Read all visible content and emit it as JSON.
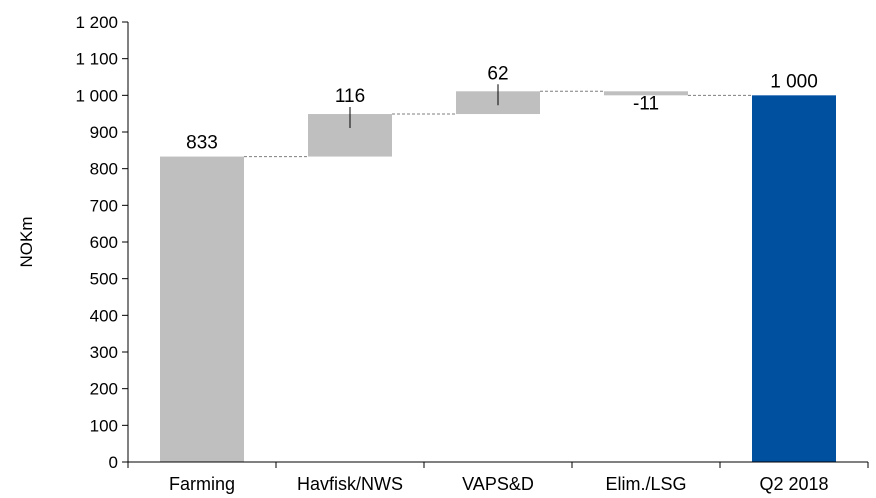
{
  "chart_data": {
    "type": "bar",
    "subtype": "waterfall",
    "title": "",
    "ylabel": "NOKm",
    "xlabel": "",
    "ylim": [
      0,
      1200
    ],
    "yticks": [
      0,
      100,
      200,
      300,
      400,
      500,
      600,
      700,
      800,
      900,
      1000,
      1100,
      1200
    ],
    "ytick_labels": [
      "0",
      "100",
      "200",
      "300",
      "400",
      "500",
      "600",
      "700",
      "800",
      "900",
      "1 000",
      "1 100",
      "1 200"
    ],
    "grid": false,
    "legend": "none",
    "categories": [
      "Farming",
      "Havfisk/NWS",
      "VAPS&D",
      "Elim./LSG",
      "Q2 2018"
    ],
    "values": [
      833,
      116,
      62,
      -11,
      1000
    ],
    "value_labels": [
      "833",
      "116",
      "62",
      "-11",
      "1 000"
    ],
    "kinds": [
      "total",
      "delta",
      "delta",
      "delta",
      "total"
    ],
    "colors": {
      "step": "#bfbfbf",
      "final": "#0050a0",
      "axis": "#000000",
      "connector": "#7f7f7f"
    }
  }
}
